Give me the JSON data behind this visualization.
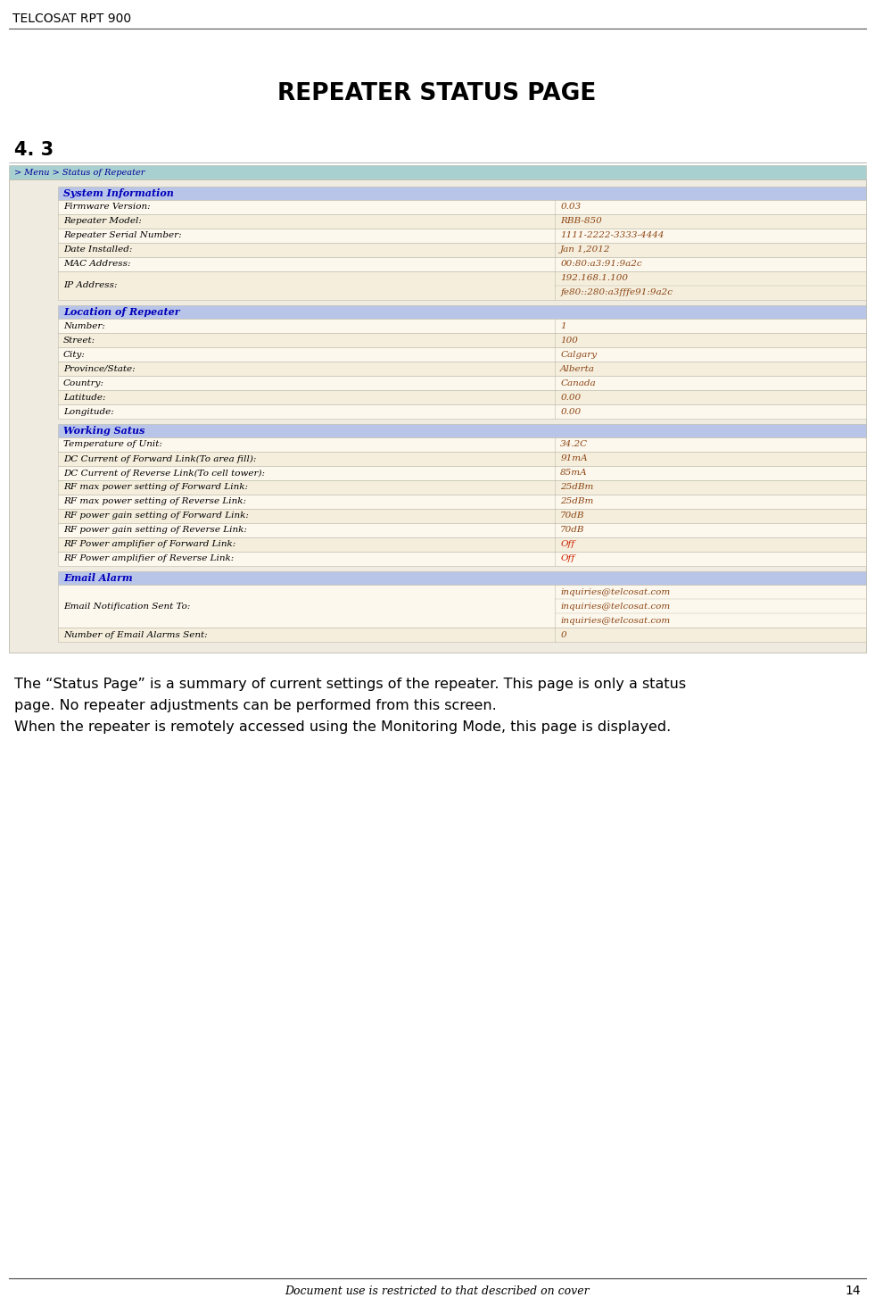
{
  "header_title": "TELCOSAT RPT 900",
  "page_title": "REPEATER STATUS PAGE",
  "section_number": "4. 3",
  "nav_text": "> Menu > Status of Repeater",
  "nav_bg": "#a8d0d0",
  "nav_text_color": "#000099",
  "section_header_bg": "#b8c4e8",
  "section_header_text_color": "#0000bb",
  "row_bg1": "#fdf8ee",
  "row_bg2": "#f5eedd",
  "table_border_color": "#bbbbaa",
  "table_outer_bg": "#f0ebe0",
  "inner_indent": 55,
  "sections": [
    {
      "title": "System Information",
      "rows": [
        [
          "Firmware Version:",
          "0.03",
          false
        ],
        [
          "Repeater Model:",
          "RBB-850",
          false
        ],
        [
          "Repeater Serial Number:",
          "1111-2222-3333-4444",
          false
        ],
        [
          "Date Installed:",
          "Jan 1,2012",
          false
        ],
        [
          "MAC Address:",
          "00:80:a3:91:9a2c",
          false
        ],
        [
          "IP Address:",
          "192.168.1.100\nfe80::280:a3fffe91:9a2c",
          false
        ]
      ]
    },
    {
      "title": "Location of Repeater",
      "rows": [
        [
          "Number:",
          "1",
          false
        ],
        [
          "Street:",
          "100",
          false
        ],
        [
          "City:",
          "Calgary",
          false
        ],
        [
          "Province/State:",
          "Alberta",
          false
        ],
        [
          "Country:",
          "Canada",
          false
        ],
        [
          "Latitude:",
          "0.00",
          false
        ],
        [
          "Longitude:",
          "0.00",
          false
        ]
      ]
    },
    {
      "title": "Working Satus",
      "rows": [
        [
          "Temperature of Unit:",
          "34.2C",
          false
        ],
        [
          "DC Current of Forward Link(To area fill):",
          "91mA",
          false
        ],
        [
          "DC Current of Reverse Link(To cell tower):",
          "85mA",
          false
        ],
        [
          "RF max power setting of Forward Link:",
          "25dBm",
          false
        ],
        [
          "RF max power setting of Reverse Link:",
          "25dBm",
          false
        ],
        [
          "RF power gain setting of Forward Link:",
          "70dB",
          false
        ],
        [
          "RF power gain setting of Reverse Link:",
          "70dB",
          false
        ],
        [
          "RF Power amplifier of Forward Link:",
          "Off",
          true
        ],
        [
          "RF Power amplifier of Reverse Link:",
          "Off",
          true
        ]
      ]
    },
    {
      "title": "Email Alarm",
      "rows": [
        [
          "Email Notification Sent To:",
          "inquiries@telcosat.com\ninquiries@telcosat.com\ninquiries@telcosat.com",
          false
        ],
        [
          "Number of Email Alarms Sent:",
          "0",
          false
        ]
      ]
    }
  ],
  "description_lines": [
    "The “Status Page” is a summary of current settings of the repeater. This page is only a status",
    "page. No repeater adjustments can be performed from this screen.",
    "When the repeater is remotely accessed using the Monitoring Mode, this page is displayed."
  ],
  "footer_text": "Document use is restricted to that described on cover",
  "page_number": "14",
  "red_color": "#cc2200",
  "value_color": "#8b4513",
  "label_color": "#000000"
}
